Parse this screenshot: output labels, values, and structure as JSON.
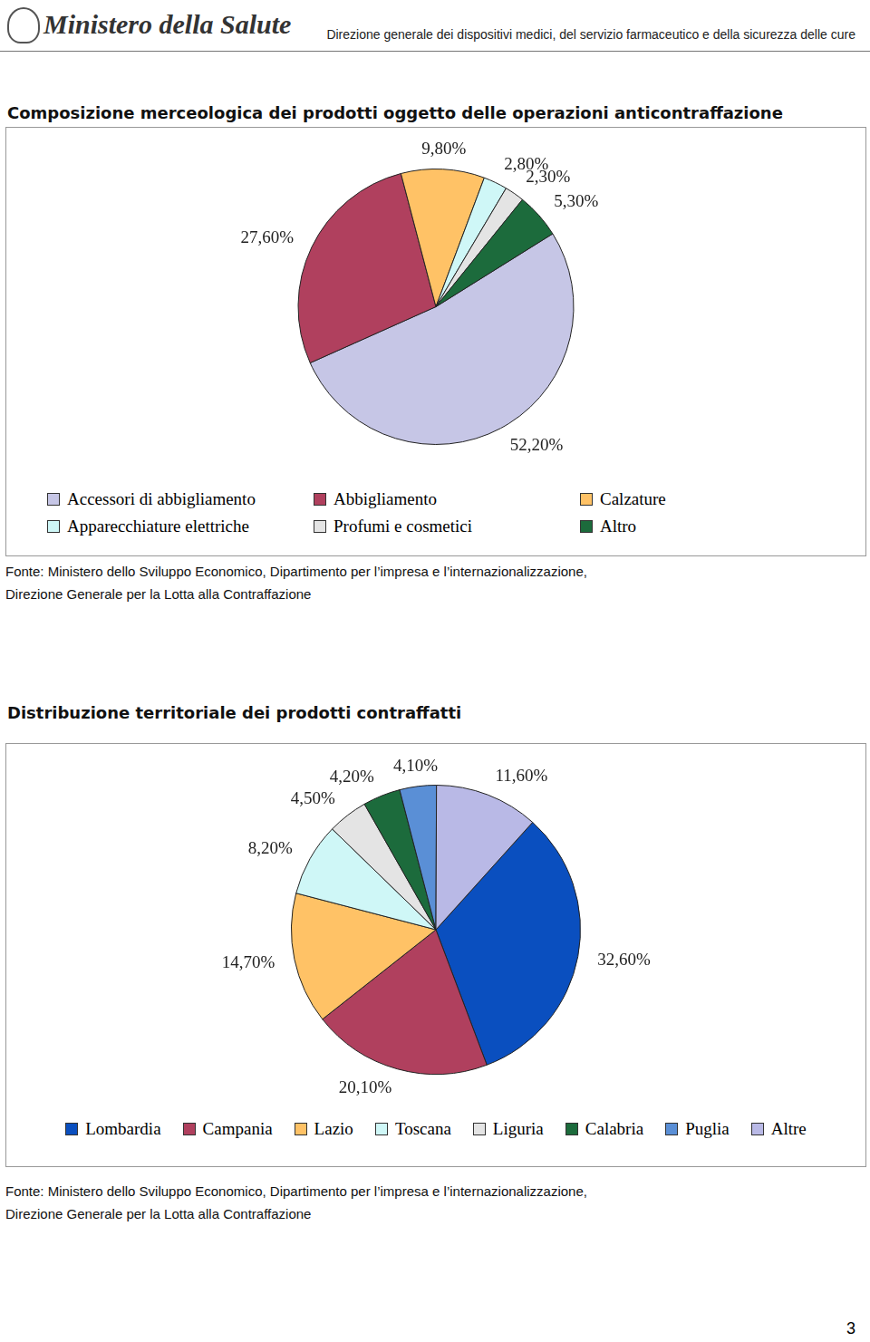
{
  "header": {
    "logo": "Ministero della Salute",
    "department": "Direzione generale dei dispositivi medici, del servizio farmaceutico e della sicurezza delle cure"
  },
  "chart_data": [
    {
      "type": "pie",
      "title": "Composizione merceologica dei prodotti oggetto delle operazioni anticontraffazione",
      "categories": [
        "Accessori di abbigliamento",
        "Abbigliamento",
        "Calzature",
        "Apparecchiature elettriche",
        "Profumi e cosmetici",
        "Altro"
      ],
      "values": [
        52.2,
        27.6,
        9.8,
        2.8,
        2.3,
        5.3
      ],
      "value_labels": [
        "52,20%",
        "27,60%",
        "9,80%",
        "2,80%",
        "2,30%",
        "5,30%"
      ],
      "colors": [
        "#c6c6e6",
        "#b0405e",
        "#ffc266",
        "#cff7f7",
        "#e4e4e4",
        "#1c6b3c"
      ],
      "data_labels": true,
      "legend": "bottom",
      "source": [
        "Fonte: Ministero  dello Sviluppo Economico, Dipartimento per l’impresa e l’internazionalizzazione,",
        "Direzione Generale per la Lotta alla Contraffazione"
      ]
    },
    {
      "type": "pie",
      "title": "Distribuzione territoriale dei prodotti contraffatti",
      "categories": [
        "Lombardia",
        "Campania",
        "Lazio",
        "Toscana",
        "Liguria",
        "Calabria",
        "Puglia",
        "Altre"
      ],
      "values": [
        32.6,
        20.1,
        14.7,
        8.2,
        4.5,
        4.2,
        4.1,
        11.6
      ],
      "value_labels": [
        "32,60%",
        "20,10%",
        "14,70%",
        "8,20%",
        "4,50%",
        "4,20%",
        "4,10%",
        "11,60%"
      ],
      "colors": [
        "#0a4fbf",
        "#b0405e",
        "#ffc266",
        "#cff7f7",
        "#e4e4e4",
        "#1c6b3c",
        "#5a8fd6",
        "#b9b9e6"
      ],
      "data_labels": true,
      "legend": "bottom",
      "source": [
        "Fonte: Ministero  dello Sviluppo Economico, Dipartimento per l’impresa e l’internazionalizzazione,",
        "Direzione Generale per la Lotta alla Contraffazione"
      ]
    }
  ],
  "page_number": "3"
}
